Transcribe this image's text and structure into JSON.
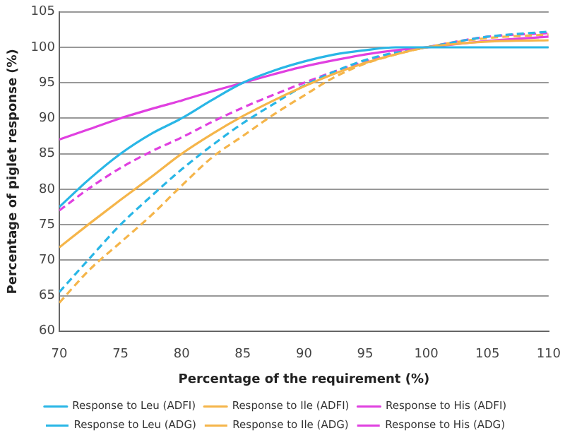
{
  "chart_data": {
    "type": "line",
    "xlabel": "Percentage of the requirement (%)",
    "ylabel": "Percentage of piglet response (%)",
    "x": [
      70,
      72.5,
      75,
      77.5,
      80,
      82.5,
      85,
      87.5,
      90,
      92.5,
      95,
      97.5,
      100,
      105,
      110
    ],
    "xlim": [
      70,
      110
    ],
    "xticks": [
      70,
      75,
      80,
      85,
      90,
      95,
      100,
      105,
      110
    ],
    "ylim": [
      60,
      105
    ],
    "yticks": [
      60,
      65,
      70,
      75,
      80,
      85,
      90,
      95,
      100,
      105
    ],
    "grid": "y",
    "legend": "bottom",
    "marker": "none",
    "series": [
      {
        "name": "Response to Leu (ADFI)",
        "color": "#29b6e6",
        "line_style": "solid",
        "values": [
          77.5,
          81.5,
          85,
          87.8,
          90,
          92.6,
          95,
          96.7,
          98,
          99,
          99.6,
          100,
          100,
          100,
          100
        ]
      },
      {
        "name": "Response to Ile (ADFI)",
        "color": "#f5b54a",
        "line_style": "solid",
        "values": [
          71.8,
          75.2,
          78.5,
          81.7,
          85,
          87.8,
          90.3,
          92.5,
          94.5,
          96.3,
          97.8,
          99,
          100,
          100.8,
          101
        ]
      },
      {
        "name": "Response to His (ADFI)",
        "color": "#e040e0",
        "line_style": "solid",
        "values": [
          87,
          88.5,
          90,
          91.3,
          92.5,
          93.8,
          95,
          96.2,
          97.3,
          98.2,
          99,
          99.6,
          100,
          100.9,
          101.5
        ]
      },
      {
        "name": "Response to Leu (ADG)",
        "color": "#29b6e6",
        "line_style": "dashed",
        "values": [
          65.5,
          70.3,
          75,
          79,
          82.8,
          86.2,
          89.3,
          92,
          94.6,
          96.6,
          98.2,
          99.3,
          100,
          101.5,
          102.2
        ]
      },
      {
        "name": "Response to Ile (ADG)",
        "color": "#f5b54a",
        "line_style": "dashed",
        "values": [
          64,
          68.7,
          72.5,
          76.3,
          80.5,
          84.5,
          87.5,
          90.5,
          93.2,
          95.8,
          97.7,
          99,
          100,
          101.3,
          101.8
        ]
      },
      {
        "name": "Response to His (ADG)",
        "color": "#e040e0",
        "line_style": "dashed",
        "values": [
          77,
          80.2,
          83,
          85.3,
          87.3,
          89.5,
          91.5,
          93.3,
          95,
          96.6,
          98,
          99.2,
          100,
          101.5,
          102
        ]
      }
    ]
  }
}
